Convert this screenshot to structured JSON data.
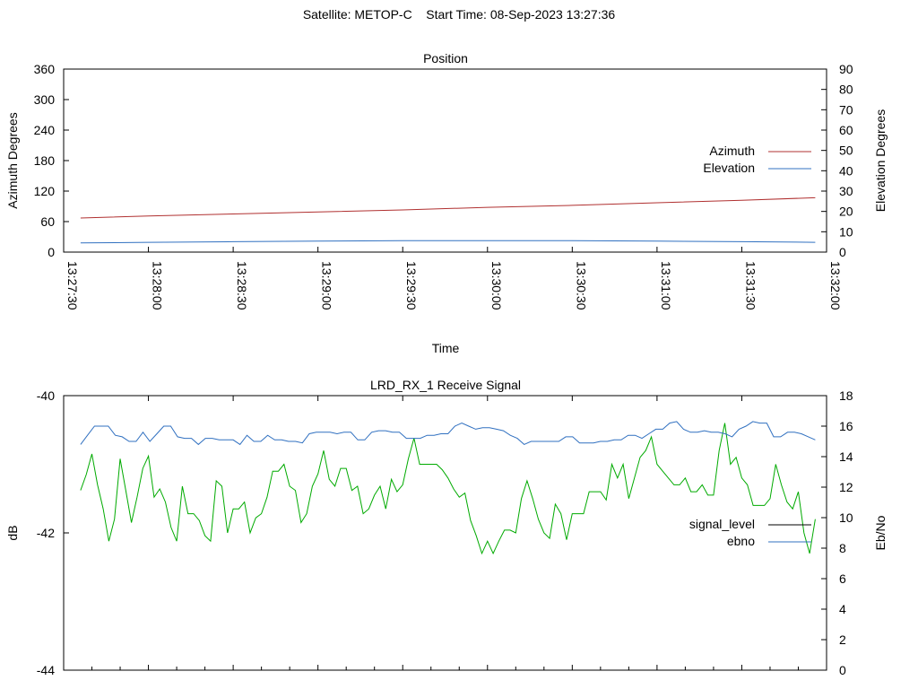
{
  "header": {
    "satellite_label": "Satellite: METOP-C",
    "start_time_label": "Start Time: 08-Sep-2023 13:27:36"
  },
  "chart_data": [
    {
      "type": "line",
      "title": "Position",
      "xlabel": "Time",
      "ylabel_left": "Azimuth Degrees",
      "ylabel_right": "Elevation Degrees",
      "x_range": [
        "13:27:30",
        "13:32:00"
      ],
      "x_ticks": [
        "13:27:30",
        "13:28:00",
        "13:28:30",
        "13:29:00",
        "13:29:30",
        "13:30:00",
        "13:30:30",
        "13:31:00",
        "13:31:30",
        "13:32:00"
      ],
      "ylim_left": [
        0,
        360
      ],
      "yticks_left": [
        0,
        60,
        120,
        180,
        240,
        300,
        360
      ],
      "ylim_right": [
        0,
        90
      ],
      "yticks_right": [
        0,
        10,
        20,
        30,
        40,
        50,
        60,
        70,
        80,
        90
      ],
      "legend_position": "right",
      "grid": false,
      "series": [
        {
          "name": "Azimuth",
          "axis": "left",
          "color": "#b03030",
          "x": [
            "13:27:36",
            "13:28:00",
            "13:28:30",
            "13:29:00",
            "13:29:30",
            "13:30:00",
            "13:30:30",
            "13:31:00",
            "13:31:30",
            "13:31:56"
          ],
          "values": [
            67,
            71,
            75,
            79,
            83,
            88,
            92,
            97,
            102,
            107
          ]
        },
        {
          "name": "Elevation",
          "axis": "right",
          "color": "#3070c0",
          "x": [
            "13:27:36",
            "13:28:00",
            "13:28:30",
            "13:29:00",
            "13:29:30",
            "13:30:00",
            "13:30:30",
            "13:31:00",
            "13:31:30",
            "13:31:56"
          ],
          "values": [
            4.5,
            4.8,
            5.1,
            5.4,
            5.6,
            5.6,
            5.6,
            5.4,
            5.1,
            4.8
          ]
        }
      ]
    },
    {
      "type": "line",
      "title": "LRD_RX_1 Receive Signal",
      "ylabel_left": "dB",
      "ylabel_right": "Eb/No",
      "x_range": [
        "13:27:30",
        "13:32:00"
      ],
      "ylim_left": [
        -44,
        -40
      ],
      "yticks_left": [
        -44,
        -42,
        -40
      ],
      "ylim_right": [
        0,
        18
      ],
      "yticks_right": [
        0,
        2,
        4,
        6,
        8,
        10,
        12,
        14,
        16,
        18
      ],
      "legend_position": "right",
      "grid": false,
      "series": [
        {
          "name": "signal_level",
          "axis": "left",
          "color": "#00aa00",
          "legend_color": "#000000",
          "values": [
            -41.38,
            -41.15,
            -40.85,
            -41.3,
            -41.65,
            -42.12,
            -41.8,
            -40.92,
            -41.38,
            -41.85,
            -41.48,
            -41.06,
            -40.88,
            -41.48,
            -41.36,
            -41.55,
            -41.92,
            -42.12,
            -41.32,
            -41.72,
            -41.72,
            -41.82,
            -42.04,
            -42.12,
            -41.24,
            -41.32,
            -42.0,
            -41.65,
            -41.65,
            -41.55,
            -42.0,
            -41.78,
            -41.72,
            -41.48,
            -41.1,
            -41.1,
            -41.0,
            -41.32,
            -41.38,
            -41.85,
            -41.72,
            -41.32,
            -41.14,
            -40.8,
            -41.22,
            -41.32,
            -41.06,
            -41.06,
            -41.38,
            -41.32,
            -41.72,
            -41.65,
            -41.45,
            -41.32,
            -41.65,
            -41.22,
            -41.4,
            -41.3,
            -40.92,
            -40.62,
            -41.0,
            -41.0,
            -41.0,
            -41.0,
            -41.08,
            -41.2,
            -41.36,
            -41.48,
            -41.42,
            -41.82,
            -42.04,
            -42.3,
            -42.12,
            -42.3,
            -42.12,
            -41.96,
            -41.96,
            -42.0,
            -41.5,
            -41.24,
            -41.5,
            -41.8,
            -42.0,
            -42.08,
            -41.58,
            -41.72,
            -42.1,
            -41.72,
            -41.72,
            -41.72,
            -41.4,
            -41.4,
            -41.4,
            -41.52,
            -41.0,
            -41.2,
            -41.0,
            -41.5,
            -41.2,
            -40.9,
            -40.8,
            -40.6,
            -41.0,
            -41.1,
            -41.2,
            -41.3,
            -41.3,
            -41.2,
            -41.4,
            -41.4,
            -41.3,
            -41.45,
            -41.45,
            -40.8,
            -40.4,
            -41.0,
            -40.9,
            -41.2,
            -41.3,
            -41.6,
            -41.6,
            -41.6,
            -41.5,
            -41.0,
            -41.3,
            -41.55,
            -41.65,
            -41.4,
            -42.0,
            -42.3,
            -41.8
          ],
          "note_x_span": [
            "13:27:36",
            "13:31:56"
          ]
        },
        {
          "name": "ebno",
          "axis": "right",
          "color": "#3070c0",
          "values": [
            14.8,
            15.4,
            16.0,
            16.0,
            16.0,
            15.4,
            15.3,
            15.0,
            15.0,
            15.6,
            15.0,
            15.5,
            16.0,
            16.0,
            15.3,
            15.2,
            15.2,
            14.8,
            15.2,
            15.2,
            15.1,
            15.1,
            15.1,
            14.8,
            15.4,
            15.0,
            15.0,
            15.4,
            15.1,
            15.1,
            15.0,
            15.0,
            14.9,
            15.5,
            15.6,
            15.6,
            15.6,
            15.5,
            15.6,
            15.6,
            15.1,
            15.1,
            15.6,
            15.7,
            15.7,
            15.6,
            15.6,
            15.2,
            15.2,
            15.2,
            15.4,
            15.4,
            15.5,
            15.5,
            16.0,
            16.2,
            16.0,
            15.8,
            15.9,
            15.9,
            15.8,
            15.7,
            15.4,
            15.2,
            14.8,
            15.0,
            15.0,
            15.0,
            15.0,
            15.0,
            15.3,
            15.3,
            14.9,
            14.9,
            14.9,
            15.0,
            15.0,
            15.1,
            15.1,
            15.4,
            15.4,
            15.2,
            15.5,
            15.8,
            15.8,
            16.2,
            16.3,
            15.8,
            15.6,
            15.6,
            15.7,
            15.6,
            15.6,
            15.5,
            15.3,
            15.8,
            16.0,
            16.3,
            16.2,
            16.2,
            15.3,
            15.3,
            15.6,
            15.6,
            15.5,
            15.3,
            15.1
          ]
        }
      ]
    }
  ]
}
